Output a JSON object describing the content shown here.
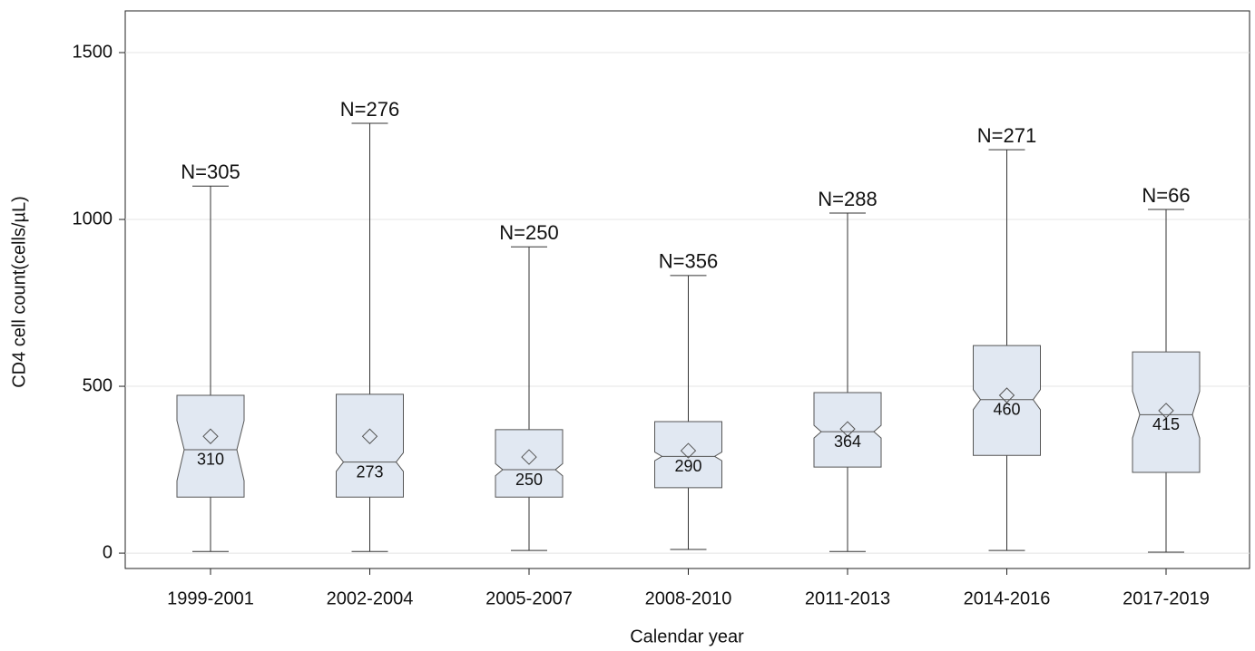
{
  "chart_data": {
    "type": "box",
    "x_label": "Calendar year",
    "y_label": "CD4 cell count(cells/µL)",
    "categories": [
      "1999-2001",
      "2002-2004",
      "2005-2007",
      "2008-2010",
      "2011-2013",
      "2014-2016",
      "2017-2019"
    ],
    "whisker_low": [
      5,
      5,
      8,
      11,
      5,
      8,
      3
    ],
    "q1": [
      168,
      168,
      168,
      196,
      258,
      293,
      242
    ],
    "notch_low": [
      217,
      245,
      232,
      277,
      345,
      430,
      345
    ],
    "median": [
      310,
      273,
      250,
      290,
      364,
      460,
      415
    ],
    "notch_high": [
      397,
      301,
      268,
      303,
      383,
      490,
      485
    ],
    "q3": [
      473,
      476,
      370,
      394,
      481,
      622,
      603
    ],
    "whisker_high": [
      1100,
      1288,
      918,
      832,
      1019,
      1209,
      1030
    ],
    "mean": [
      350,
      350,
      288,
      307,
      372,
      473,
      427
    ],
    "n_labels": [
      "N=305",
      "N=276",
      "N=250",
      "N=356",
      "N=288",
      "N=271",
      "N=66"
    ],
    "color": "#e1e8f2",
    "ylim": [
      -46,
      1625
    ],
    "yticks": [
      0,
      500,
      1000,
      1500
    ],
    "grid": true
  }
}
